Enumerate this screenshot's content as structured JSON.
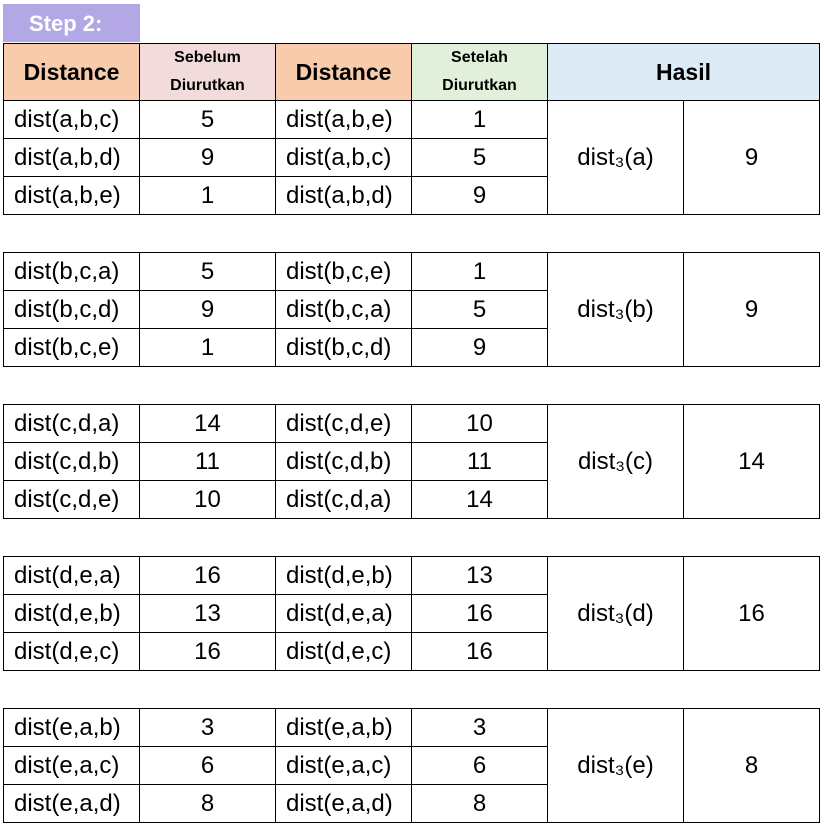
{
  "step_label": "Step 2:",
  "headers": {
    "distance_before": "Distance",
    "before": [
      "Sebelum",
      "Diurutkan"
    ],
    "distance_after": "Distance",
    "after": [
      "Setelah",
      "Diurutkan"
    ],
    "result": "Hasil"
  },
  "groups": [
    {
      "rows": [
        {
          "before_name": "dist(a,b,c)",
          "before_val": "5",
          "after_name": "dist(a,b,e)",
          "after_val": "1"
        },
        {
          "before_name": "dist(a,b,d)",
          "before_val": "9",
          "after_name": "dist(a,b,c)",
          "after_val": "5"
        },
        {
          "before_name": "dist(a,b,e)",
          "before_val": "1",
          "after_name": "dist(a,b,d)",
          "after_val": "9"
        }
      ],
      "result_label": "dist₃(a)",
      "result_value": "9"
    },
    {
      "rows": [
        {
          "before_name": "dist(b,c,a)",
          "before_val": "5",
          "after_name": "dist(b,c,e)",
          "after_val": "1"
        },
        {
          "before_name": "dist(b,c,d)",
          "before_val": "9",
          "after_name": "dist(b,c,a)",
          "after_val": "5"
        },
        {
          "before_name": "dist(b,c,e)",
          "before_val": "1",
          "after_name": "dist(b,c,d)",
          "after_val": "9"
        }
      ],
      "result_label": "dist₃(b)",
      "result_value": "9"
    },
    {
      "rows": [
        {
          "before_name": "dist(c,d,a)",
          "before_val": "14",
          "after_name": "dist(c,d,e)",
          "after_val": "10"
        },
        {
          "before_name": "dist(c,d,b)",
          "before_val": "11",
          "after_name": "dist(c,d,b)",
          "after_val": "11"
        },
        {
          "before_name": "dist(c,d,e)",
          "before_val": "10",
          "after_name": "dist(c,d,a)",
          "after_val": "14"
        }
      ],
      "result_label": "dist₃(c)",
      "result_value": "14"
    },
    {
      "rows": [
        {
          "before_name": "dist(d,e,a)",
          "before_val": "16",
          "after_name": "dist(d,e,b)",
          "after_val": "13"
        },
        {
          "before_name": "dist(d,e,b)",
          "before_val": "13",
          "after_name": "dist(d,e,a)",
          "after_val": "16"
        },
        {
          "before_name": "dist(d,e,c)",
          "before_val": "16",
          "after_name": "dist(d,e,c)",
          "after_val": "16"
        }
      ],
      "result_label": "dist₃(d)",
      "result_value": "16"
    },
    {
      "rows": [
        {
          "before_name": "dist(e,a,b)",
          "before_val": "3",
          "after_name": "dist(e,a,b)",
          "after_val": "3"
        },
        {
          "before_name": "dist(e,a,c)",
          "before_val": "6",
          "after_name": "dist(e,a,c)",
          "after_val": "6"
        },
        {
          "before_name": "dist(e,a,d)",
          "before_val": "8",
          "after_name": "dist(e,a,d)",
          "after_val": "8"
        }
      ],
      "result_label": "dist₃(e)",
      "result_value": "8"
    }
  ]
}
